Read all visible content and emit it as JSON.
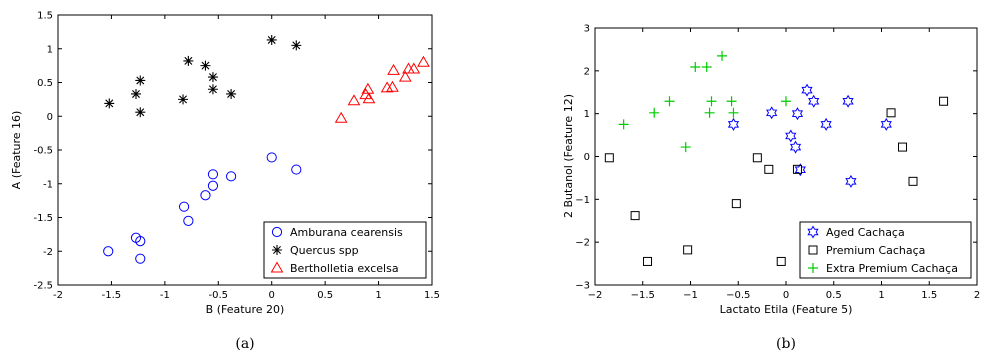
{
  "chart_data": [
    {
      "type": "scatter",
      "caption": "(a)",
      "xlabel": "B (Feature 20)",
      "ylabel": "A (Feature 16)",
      "xlim": [
        -2,
        1.5
      ],
      "ylim": [
        -2.5,
        1.5
      ],
      "xticks": [
        "-2",
        "-1.5",
        "-1",
        "-0.5",
        "0",
        "0.5",
        "1",
        "1.5"
      ],
      "yticks": [
        "-2.5",
        "-2",
        "-1.5",
        "-1",
        "-0.5",
        "0",
        "0.5",
        "1",
        "1.5"
      ],
      "grid": false,
      "legend_position": "bottom-right",
      "series": [
        {
          "name": "Amburana cearensis",
          "marker": "circle",
          "color": "#0000ff",
          "points": [
            [
              -1.53,
              -2.0
            ],
            [
              -1.27,
              -1.8
            ],
            [
              -1.23,
              -1.85
            ],
            [
              -1.23,
              -2.11
            ],
            [
              -0.82,
              -1.34
            ],
            [
              -0.78,
              -1.55
            ],
            [
              -0.62,
              -1.17
            ],
            [
              -0.55,
              -1.03
            ],
            [
              -0.55,
              -0.86
            ],
            [
              -0.38,
              -0.89
            ],
            [
              0.0,
              -0.61
            ],
            [
              0.23,
              -0.79
            ]
          ]
        },
        {
          "name": "Quercus spp",
          "marker": "star",
          "color": "#000000",
          "points": [
            [
              -1.52,
              0.19
            ],
            [
              -1.27,
              0.33
            ],
            [
              -1.23,
              0.53
            ],
            [
              -1.23,
              0.06
            ],
            [
              -0.83,
              0.25
            ],
            [
              -0.78,
              0.82
            ],
            [
              -0.62,
              0.75
            ],
            [
              -0.55,
              0.58
            ],
            [
              -0.55,
              0.4
            ],
            [
              -0.38,
              0.33
            ],
            [
              0.0,
              1.13
            ],
            [
              0.23,
              1.05
            ]
          ]
        },
        {
          "name": "Bertholletia excelsa",
          "marker": "triangle",
          "color": "#ff0000",
          "points": [
            [
              0.65,
              -0.03
            ],
            [
              0.77,
              0.23
            ],
            [
              0.88,
              0.32
            ],
            [
              0.9,
              0.4
            ],
            [
              0.91,
              0.26
            ],
            [
              1.08,
              0.42
            ],
            [
              1.13,
              0.43
            ],
            [
              1.14,
              0.68
            ],
            [
              1.25,
              0.58
            ],
            [
              1.28,
              0.7
            ],
            [
              1.33,
              0.7
            ],
            [
              1.42,
              0.8
            ]
          ]
        }
      ]
    },
    {
      "type": "scatter",
      "caption": "(b)",
      "xlabel": "Lactato Etila (Feature 5)",
      "ylabel": "2 Butanol (Feature 12)",
      "xlim": [
        -2,
        2
      ],
      "ylim": [
        -3,
        3
      ],
      "xticks": [
        "−2",
        "−1.5",
        "−1",
        "−0.5",
        "0",
        "0.5",
        "1",
        "1.5",
        "2"
      ],
      "yticks": [
        "−3",
        "−2",
        "−1",
        "0",
        "1",
        "2",
        "3"
      ],
      "grid": false,
      "legend_position": "bottom-right",
      "series": [
        {
          "name": "Aged Cachaça",
          "marker": "hexagram",
          "color": "#0000ff",
          "points": [
            [
              -0.55,
              0.75
            ],
            [
              -0.15,
              1.02
            ],
            [
              0.05,
              0.48
            ],
            [
              0.1,
              0.22
            ],
            [
              0.12,
              1.0
            ],
            [
              0.15,
              -0.31
            ],
            [
              0.22,
              1.55
            ],
            [
              0.29,
              1.29
            ],
            [
              0.42,
              0.75
            ],
            [
              0.65,
              1.29
            ],
            [
              0.68,
              -0.58
            ],
            [
              1.05,
              0.75
            ]
          ]
        },
        {
          "name": "Premium Cachaça",
          "marker": "square",
          "color": "#000000",
          "points": [
            [
              -1.85,
              -0.03
            ],
            [
              -1.58,
              -1.38
            ],
            [
              -1.45,
              -2.45
            ],
            [
              -1.03,
              -2.18
            ],
            [
              -0.52,
              -1.1
            ],
            [
              -0.3,
              -0.03
            ],
            [
              -0.18,
              -0.3
            ],
            [
              -0.05,
              -2.45
            ],
            [
              0.12,
              -0.3
            ],
            [
              1.1,
              1.02
            ],
            [
              1.22,
              0.22
            ],
            [
              1.33,
              -0.58
            ],
            [
              1.65,
              1.29
            ]
          ]
        },
        {
          "name": "Extra Premium Cachaça",
          "marker": "plus",
          "color": "#00cc00",
          "points": [
            [
              -1.7,
              0.75
            ],
            [
              -1.38,
              1.02
            ],
            [
              -1.22,
              1.29
            ],
            [
              -1.05,
              0.22
            ],
            [
              -0.95,
              2.09
            ],
            [
              -0.83,
              2.09
            ],
            [
              -0.8,
              1.02
            ],
            [
              -0.78,
              1.29
            ],
            [
              -0.67,
              2.35
            ],
            [
              -0.57,
              1.29
            ],
            [
              -0.55,
              1.02
            ],
            [
              0.0,
              1.29
            ]
          ]
        }
      ]
    }
  ]
}
